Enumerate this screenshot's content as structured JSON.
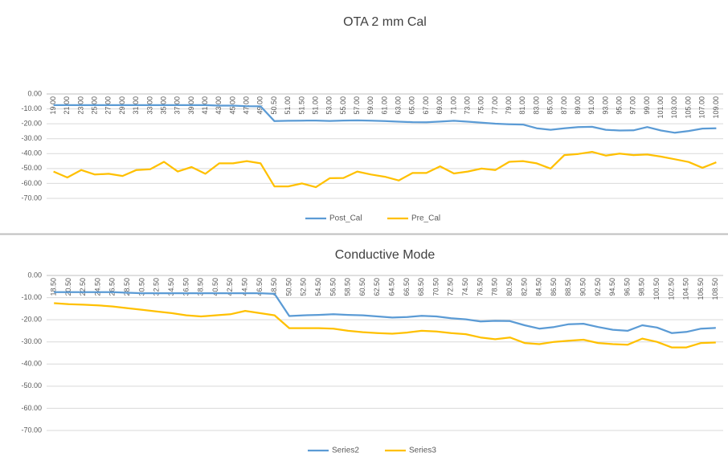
{
  "chart_data": [
    {
      "type": "line",
      "title": "OTA 2 mm Cal",
      "categories": [
        "19.00",
        "21.00",
        "23.00",
        "25.00",
        "27.00",
        "29.00",
        "31.00",
        "33.00",
        "35.00",
        "37.00",
        "39.00",
        "41.00",
        "43.00",
        "45.00",
        "47.00",
        "49.00",
        "50.50",
        "51.00",
        "51.50",
        "51.00",
        "53.00",
        "55.00",
        "57.00",
        "59.00",
        "61.00",
        "63.00",
        "65.00",
        "67.00",
        "69.00",
        "71.00",
        "73.00",
        "75.00",
        "77.00",
        "79.00",
        "81.00",
        "83.00",
        "85.00",
        "87.00",
        "89.00",
        "91.00",
        "93.00",
        "95.00",
        "97.00",
        "99.00",
        "101.00",
        "103.00",
        "105.00",
        "107.00",
        "109.00"
      ],
      "series": [
        {
          "name": "Post_Cal",
          "color": "#5b9bd5",
          "values": [
            -7.5,
            -7.5,
            -7.5,
            -7.5,
            -7.5,
            -7.5,
            -7.5,
            -7.5,
            -7.5,
            -7.5,
            -7.5,
            -7.5,
            -7.8,
            -7.8,
            -8.2,
            -8.3,
            -18.2,
            -18.0,
            -17.9,
            -17.8,
            -18.1,
            -17.8,
            -17.7,
            -17.9,
            -18.2,
            -18.6,
            -18.9,
            -19.0,
            -18.5,
            -18.0,
            -18.6,
            -19.3,
            -19.9,
            -20.3,
            -20.5,
            -23.0,
            -24.0,
            -23.0,
            -22.2,
            -22.0,
            -24.0,
            -24.5,
            -24.4,
            -22.2,
            -24.5,
            -26.0,
            -24.8,
            -23.2,
            -23.0
          ]
        },
        {
          "name": "Pre_Cal",
          "color": "#ffc000",
          "values": [
            -52,
            -56,
            -51,
            -54,
            -53.5,
            -55,
            -51,
            -50.5,
            -45.5,
            -52,
            -49,
            -53.5,
            -46.5,
            -46.5,
            -45,
            -46.5,
            -62,
            -62,
            -60,
            -62.5,
            -56.5,
            -56.3,
            -52,
            -54,
            -55.5,
            -58,
            -53,
            -53,
            -48.5,
            -53.3,
            -52,
            -50,
            -51,
            -45.5,
            -45,
            -46.5,
            -50,
            -41,
            -40.2,
            -38.8,
            -41.3,
            -40,
            -41,
            -40.6,
            -42,
            -43.8,
            -45.6,
            -49.5,
            -45.8
          ]
        }
      ],
      "ylim": [
        -70,
        0
      ],
      "yticks": [
        {
          "value": 0,
          "label": "0.00"
        },
        {
          "value": -10,
          "label": "-10.00"
        },
        {
          "value": -20,
          "label": "-20.00"
        },
        {
          "value": -30,
          "label": "-30.00"
        },
        {
          "value": -40,
          "label": "-40.00"
        },
        {
          "value": -50,
          "label": "-50.00"
        },
        {
          "value": -60,
          "label": "-60.00"
        },
        {
          "value": -70,
          "label": "-70.00"
        }
      ],
      "grid": true,
      "legend": "bottom"
    },
    {
      "type": "line",
      "title": "Conductive Mode",
      "categories": [
        "18.50",
        "20.50",
        "22.50",
        "24.50",
        "26.50",
        "28.50",
        "30.50",
        "32.50",
        "34.50",
        "36.50",
        "38.50",
        "40.50",
        "42.50",
        "44.50",
        "46.50",
        "48.50",
        "50.50",
        "52.50",
        "54.50",
        "56.50",
        "58.50",
        "60.50",
        "62.50",
        "64.50",
        "66.50",
        "68.50",
        "70.50",
        "72.50",
        "74.50",
        "76.50",
        "78.50",
        "80.50",
        "82.50",
        "84.50",
        "86.50",
        "88.50",
        "90.50",
        "92.50",
        "94.50",
        "96.50",
        "98.50",
        "100.50",
        "102.50",
        "104.50",
        "106.50",
        "108.50"
      ],
      "series": [
        {
          "name": "Series2",
          "color": "#5b9bd5",
          "values": [
            -7.5,
            -7.5,
            -7.5,
            -7.5,
            -7.5,
            -7.8,
            -8,
            -8,
            -8,
            -8,
            -8,
            -8,
            -8,
            -8,
            -8,
            -8.3,
            -18.3,
            -18,
            -17.8,
            -17.5,
            -17.8,
            -18,
            -18.5,
            -19,
            -18.8,
            -18.2,
            -18.5,
            -19.3,
            -19.8,
            -20.8,
            -20.5,
            -20.6,
            -22.5,
            -24,
            -23.3,
            -22,
            -21.8,
            -23.3,
            -24.5,
            -25,
            -22.5,
            -23.5,
            -26,
            -25.5,
            -24,
            -23.7
          ]
        },
        {
          "name": "Series3",
          "color": "#ffc000",
          "values": [
            -12.5,
            -13,
            -13.2,
            -13.5,
            -14,
            -14.8,
            -15.5,
            -16.3,
            -17,
            -18,
            -18.5,
            -18,
            -17.5,
            -16,
            -17,
            -18,
            -23.8,
            -23.8,
            -23.8,
            -24,
            -25,
            -25.6,
            -26,
            -26.3,
            -25.8,
            -25,
            -25.3,
            -26,
            -26.5,
            -28,
            -28.8,
            -28,
            -30.5,
            -31,
            -30,
            -29.5,
            -29,
            -30.5,
            -31,
            -31.3,
            -28.5,
            -30,
            -32.5,
            -32.5,
            -30.5,
            -30.3
          ]
        }
      ],
      "ylim": [
        -70,
        0
      ],
      "yticks": [
        {
          "value": 0,
          "label": "0.00"
        },
        {
          "value": -10,
          "label": "-10.00"
        },
        {
          "value": -20,
          "label": "-20.00"
        },
        {
          "value": -30,
          "label": "-30.00"
        },
        {
          "value": -40,
          "label": "-40.00"
        },
        {
          "value": -50,
          "label": "-50.00"
        },
        {
          "value": -60,
          "label": "-60.00"
        },
        {
          "value": -70,
          "label": "-70.00"
        }
      ],
      "grid": true,
      "legend": "bottom"
    }
  ]
}
